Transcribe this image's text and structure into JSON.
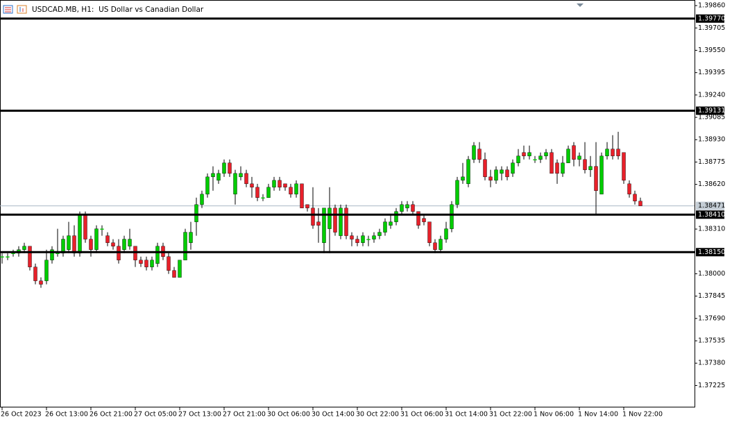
{
  "chart_data": {
    "type": "candlestick",
    "title": "USDCAD.MB, H1:  US Dollar vs Canadian Dollar",
    "categories": [
      "26 Oct 2023",
      null,
      null,
      null,
      null,
      null,
      null,
      null,
      "26 Oct 13:00",
      null,
      null,
      null,
      null,
      null,
      null,
      null,
      "26 Oct 21:00",
      null,
      null,
      null,
      null,
      null,
      null,
      null,
      "27 Oct 05:00",
      null,
      null,
      null,
      null,
      null,
      null,
      null,
      "27 Oct 13:00",
      null,
      null,
      null,
      null,
      null,
      null,
      null,
      "27 Oct 21:00",
      null,
      null,
      null,
      null,
      null,
      null,
      null,
      "30 Oct 06:00",
      null,
      null,
      null,
      null,
      null,
      null,
      null,
      "30 Oct 14:00",
      null,
      null,
      null,
      null,
      null,
      null,
      null,
      "30 Oct 22:00",
      null,
      null,
      null,
      null,
      null,
      null,
      null,
      "31 Oct 06:00",
      null,
      null,
      null,
      null,
      null,
      null,
      null,
      "31 Oct 14:00",
      null,
      null,
      null,
      null,
      null,
      null,
      null,
      "31 Oct 22:00",
      null,
      null,
      null,
      null,
      null,
      null,
      null,
      "1 Nov 06:00",
      null,
      null,
      null,
      null,
      null,
      null,
      null,
      "1 Nov 14:00",
      null,
      null,
      null,
      null,
      null,
      null,
      null,
      "1 Nov 22:00",
      null,
      null,
      null
    ],
    "open": [
      1.38119,
      1.38119,
      1.38143,
      1.38143,
      1.38167,
      1.38191,
      1.38047,
      1.37951,
      1.37951,
      1.38095,
      1.38143,
      1.38143,
      1.38167,
      1.38264,
      1.38143,
      1.38408,
      1.3824,
      1.38167,
      1.38312,
      1.38264,
      1.38215,
      1.38191,
      1.38167,
      1.38191,
      1.38191,
      1.38095,
      1.38095,
      1.38047,
      1.38071,
      1.38191,
      1.38119,
      1.38023,
      1.37975,
      1.38095,
      1.38215,
      1.3836,
      1.3848,
      1.38552,
      1.38672,
      1.38648,
      1.38696,
      1.38769,
      1.38552,
      1.38672,
      1.38696,
      1.38624,
      1.386,
      1.38528,
      1.38528,
      1.386,
      1.38648,
      1.38624,
      1.386,
      1.38552,
      1.38624,
      1.3848,
      1.38456,
      1.3836,
      1.38215,
      1.38312,
      1.38456,
      1.38264,
      1.38456,
      1.38264,
      1.3824,
      1.38215,
      1.3824,
      1.3824,
      1.38264,
      1.38288,
      1.38336,
      1.3836,
      1.38432,
      1.38456,
      1.3848,
      1.38432,
      1.38384,
      1.3836,
      1.38215,
      1.38167,
      1.3824,
      1.38312,
      1.3848,
      1.38648,
      1.38624,
      1.38793,
      1.38865,
      1.38793,
      1.38672,
      1.38648,
      1.38696,
      1.38721,
      1.38696,
      1.38769,
      1.38841,
      1.38817,
      1.38793,
      1.38793,
      1.38817,
      1.38841,
      1.38769,
      1.38696,
      1.38769,
      1.38889,
      1.38793,
      1.38793,
      1.38721,
      1.38745,
      1.38552,
      1.38817,
      1.38865,
      1.38865,
      1.38841,
      1.38624,
      1.38552,
      1.38504
    ],
    "high": [
      1.38143,
      1.38143,
      1.38167,
      1.38191,
      1.38215,
      1.38191,
      1.38071,
      1.37975,
      1.38167,
      1.38191,
      1.38312,
      1.38264,
      1.3836,
      1.38336,
      1.38432,
      1.38432,
      1.38264,
      1.38336,
      1.38336,
      1.38288,
      1.3824,
      1.3824,
      1.38264,
      1.38312,
      1.38191,
      1.38119,
      1.38119,
      1.38119,
      1.38215,
      1.38215,
      1.38143,
      1.38047,
      1.38095,
      1.38312,
      1.3836,
      1.38528,
      1.38576,
      1.38696,
      1.38745,
      1.38721,
      1.38793,
      1.38793,
      1.38721,
      1.38745,
      1.38721,
      1.38672,
      1.38624,
      1.38552,
      1.38624,
      1.38672,
      1.38672,
      1.38624,
      1.38624,
      1.38648,
      1.38624,
      1.3848,
      1.386,
      1.38456,
      1.38456,
      1.386,
      1.3848,
      1.3848,
      1.3848,
      1.38288,
      1.38264,
      1.38288,
      1.38264,
      1.38288,
      1.38312,
      1.38384,
      1.38408,
      1.38456,
      1.38504,
      1.38504,
      1.38504,
      1.38432,
      1.38408,
      1.3836,
      1.3824,
      1.38264,
      1.3836,
      1.38504,
      1.38672,
      1.38769,
      1.38817,
      1.38913,
      1.38913,
      1.38841,
      1.38721,
      1.38745,
      1.38745,
      1.38745,
      1.38793,
      1.38865,
      1.38889,
      1.38889,
      1.38817,
      1.38841,
      1.38865,
      1.38865,
      1.38793,
      1.38817,
      1.38889,
      1.38913,
      1.38841,
      1.38913,
      1.38817,
      1.38913,
      1.38841,
      1.38913,
      1.38961,
      1.38985,
      1.38841,
      1.38648,
      1.38576,
      1.38528
    ],
    "low": [
      1.38071,
      1.38095,
      1.38119,
      1.38119,
      1.38143,
      1.38023,
      1.37927,
      1.37903,
      1.37927,
      1.38071,
      1.38119,
      1.38119,
      1.38143,
      1.38119,
      1.38119,
      1.38215,
      1.38119,
      1.38143,
      1.38264,
      1.38191,
      1.38167,
      1.38071,
      1.38143,
      1.38167,
      1.38047,
      1.38047,
      1.38023,
      1.38023,
      1.38047,
      1.38095,
      1.37999,
      1.37975,
      1.37975,
      1.38095,
      1.38167,
      1.38264,
      1.38456,
      1.38528,
      1.38576,
      1.38624,
      1.38672,
      1.38672,
      1.3848,
      1.38648,
      1.386,
      1.38528,
      1.38504,
      1.38504,
      1.38528,
      1.38576,
      1.38576,
      1.38576,
      1.38528,
      1.38528,
      1.38456,
      1.38432,
      1.38312,
      1.38215,
      1.38143,
      1.38143,
      1.38264,
      1.3824,
      1.3824,
      1.38191,
      1.38191,
      1.38191,
      1.38191,
      1.38215,
      1.3824,
      1.38264,
      1.38312,
      1.38336,
      1.38408,
      1.38432,
      1.38408,
      1.38312,
      1.38336,
      1.38191,
      1.38143,
      1.38143,
      1.38215,
      1.38288,
      1.38456,
      1.38624,
      1.386,
      1.38769,
      1.38769,
      1.38648,
      1.386,
      1.38624,
      1.38648,
      1.38648,
      1.38672,
      1.38745,
      1.38793,
      1.38793,
      1.38769,
      1.38769,
      1.38793,
      1.38696,
      1.38624,
      1.38672,
      1.38769,
      1.38745,
      1.38745,
      1.38696,
      1.38672,
      1.38408,
      1.38552,
      1.38793,
      1.38793,
      1.38793,
      1.38624,
      1.38528,
      1.3848,
      1.38471
    ],
    "close": [
      1.38119,
      1.38119,
      1.38143,
      1.38167,
      1.38191,
      1.38047,
      1.37951,
      1.37927,
      1.38095,
      1.38167,
      1.38143,
      1.3824,
      1.38264,
      1.38143,
      1.38408,
      1.3824,
      1.38167,
      1.38312,
      1.38312,
      1.38215,
      1.38191,
      1.38095,
      1.3824,
      1.3824,
      1.38095,
      1.38071,
      1.38047,
      1.38095,
      1.38191,
      1.38119,
      1.38023,
      1.37975,
      1.38095,
      1.38288,
      1.38288,
      1.3848,
      1.38552,
      1.38672,
      1.38696,
      1.38696,
      1.38769,
      1.38696,
      1.38696,
      1.38696,
      1.38624,
      1.386,
      1.38528,
      1.38528,
      1.386,
      1.38648,
      1.386,
      1.386,
      1.38552,
      1.38624,
      1.38456,
      1.38456,
      1.38336,
      1.38336,
      1.38456,
      1.38456,
      1.38288,
      1.38456,
      1.38264,
      1.3824,
      1.38215,
      1.38264,
      1.3824,
      1.38264,
      1.38288,
      1.3836,
      1.3836,
      1.38432,
      1.3848,
      1.3848,
      1.38432,
      1.38336,
      1.3836,
      1.38215,
      1.38167,
      1.3824,
      1.38312,
      1.3848,
      1.38648,
      1.38672,
      1.38793,
      1.38889,
      1.38793,
      1.38672,
      1.38648,
      1.38721,
      1.38721,
      1.38672,
      1.38769,
      1.38817,
      1.38817,
      1.38841,
      1.38793,
      1.38817,
      1.38841,
      1.38696,
      1.38696,
      1.38769,
      1.38865,
      1.38793,
      1.38817,
      1.38721,
      1.38745,
      1.38576,
      1.38817,
      1.38865,
      1.38817,
      1.38817,
      1.38648,
      1.38552,
      1.38504,
      1.38471
    ],
    "up_color": "#00cc00",
    "down_color": "#e8202a",
    "ylim": [
      1.37073,
      1.39894
    ],
    "yticks": [
      {
        "value": 1.3986,
        "label": "1.39860"
      },
      1.39705,
      {
        "value": 1.3955,
        "label": "1.39550"
      },
      1.39395,
      {
        "value": 1.3924,
        "label": "1.39240"
      },
      1.39085,
      {
        "value": 1.3893,
        "label": "1.38930"
      },
      1.38775,
      {
        "value": 1.3862,
        "label": "1.38620"
      },
      {
        "value": 1.3831,
        "label": "1.38310"
      },
      {
        "value": 1.38,
        "label": "1.38000"
      },
      1.37845,
      {
        "value": 1.3769,
        "label": "1.37690"
      },
      1.37535,
      {
        "value": 1.3738,
        "label": "1.37380"
      },
      1.37225
    ],
    "levels": [
      {
        "value": 1.3977,
        "label": "1.39770"
      },
      {
        "value": 1.39131,
        "label": "1.39131"
      },
      {
        "value": 1.3841,
        "label": "1.38410"
      },
      {
        "value": 1.3815,
        "label": "1.38150"
      }
    ],
    "current_price": 1.38471,
    "grid": false
  }
}
